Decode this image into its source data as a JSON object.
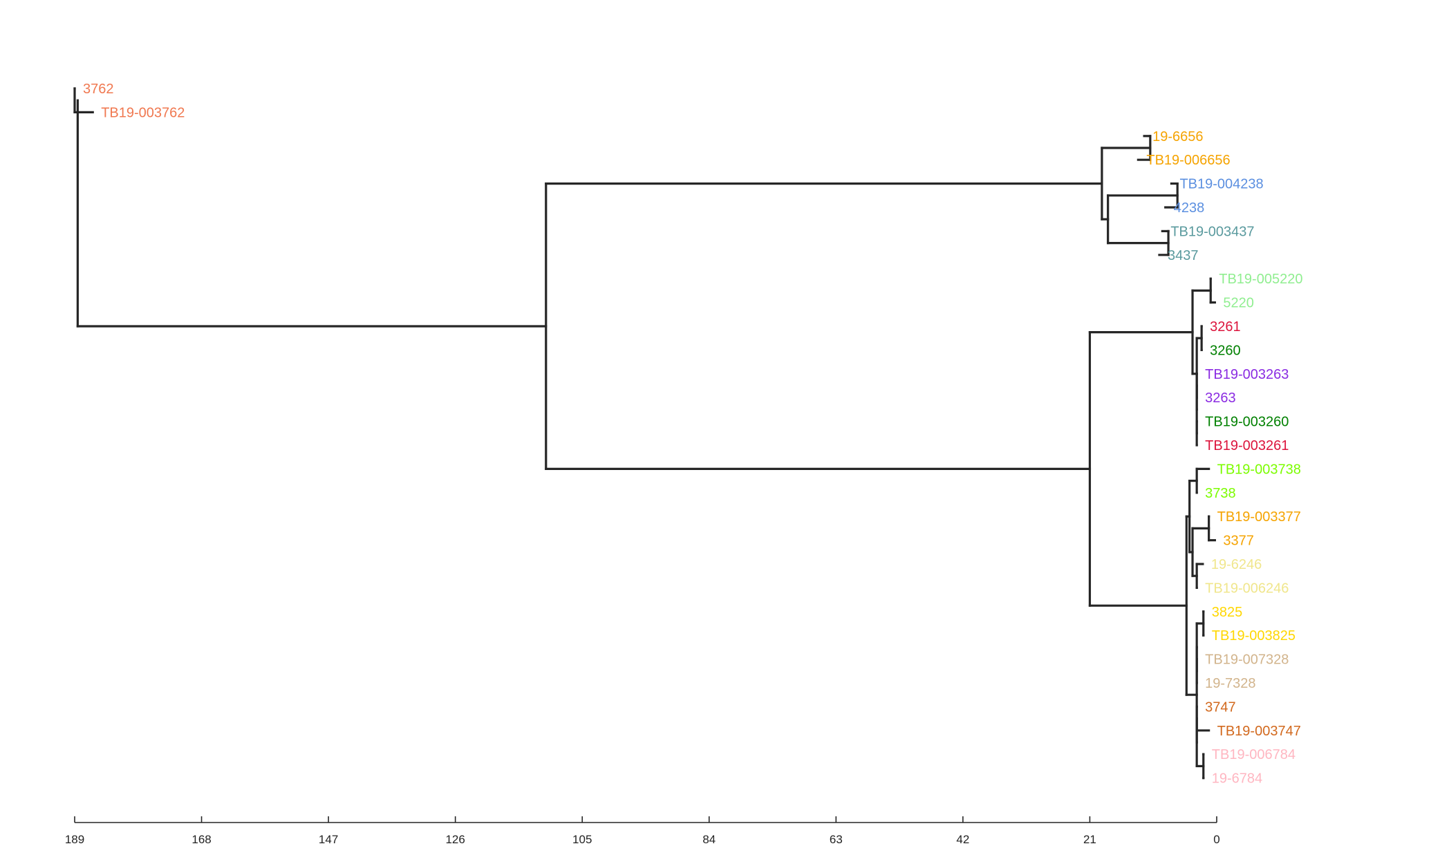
{
  "chart_data": {
    "type": "dendrogram",
    "orientation": "root-left",
    "xaxis": {
      "range": [
        189,
        0
      ],
      "ticks": [
        189,
        168,
        147,
        126,
        105,
        84,
        63,
        42,
        21,
        0
      ]
    },
    "leaves": [
      {
        "label": "3762",
        "color": "#f07850",
        "height": 189,
        "cluster": "A"
      },
      {
        "label": "TB19-003762",
        "color": "#f07850",
        "height": 186,
        "cluster": "A"
      },
      {
        "label": "19-6656",
        "color": "#f5a300",
        "height": 12,
        "cluster": "B1"
      },
      {
        "label": "TB19-006656",
        "color": "#f5a300",
        "height": 13,
        "cluster": "B1"
      },
      {
        "label": "TB19-004238",
        "color": "#5b8fe0",
        "height": 7.5,
        "cluster": "B2"
      },
      {
        "label": "4238",
        "color": "#5b8fe0",
        "height": 8.5,
        "cluster": "B2"
      },
      {
        "label": "TB19-003437",
        "color": "#5a9a9e",
        "height": 9,
        "cluster": "B3"
      },
      {
        "label": "3437",
        "color": "#5a9a9e",
        "height": 9.5,
        "cluster": "B3"
      },
      {
        "label": "TB19-005220",
        "color": "#90ee90",
        "height": 1,
        "cluster": "C1"
      },
      {
        "label": "5220",
        "color": "#90ee90",
        "height": 0.3,
        "cluster": "C1"
      },
      {
        "label": "3261",
        "color": "#dc143c",
        "height": 2.5,
        "cluster": "C1"
      },
      {
        "label": "3260",
        "color": "#008000",
        "height": 2.5,
        "cluster": "C1"
      },
      {
        "label": "TB19-003263",
        "color": "#8a2be2",
        "height": 3.3,
        "cluster": "C1"
      },
      {
        "label": "3263",
        "color": "#8a2be2",
        "height": 3.3,
        "cluster": "C1"
      },
      {
        "label": "TB19-003260",
        "color": "#008000",
        "height": 3.3,
        "cluster": "C1"
      },
      {
        "label": "TB19-003261",
        "color": "#dc143c",
        "height": 3.3,
        "cluster": "C1"
      },
      {
        "label": "TB19-003738",
        "color": "#7cfc00",
        "height": 1.3,
        "cluster": "C2"
      },
      {
        "label": "3738",
        "color": "#7cfc00",
        "height": 3.3,
        "cluster": "C2"
      },
      {
        "label": "TB19-003377",
        "color": "#f5a300",
        "height": 1.3,
        "cluster": "C2"
      },
      {
        "label": "3377",
        "color": "#f5a300",
        "height": 0.3,
        "cluster": "C2"
      },
      {
        "label": "19-6246",
        "color": "#f0e68c",
        "height": 2.3,
        "cluster": "C2"
      },
      {
        "label": "TB19-006246",
        "color": "#f0e68c",
        "height": 3.3,
        "cluster": "C2"
      },
      {
        "label": "3825",
        "color": "#ffd700",
        "height": 2.2,
        "cluster": "C3"
      },
      {
        "label": "TB19-003825",
        "color": "#ffd700",
        "height": 2.2,
        "cluster": "C3"
      },
      {
        "label": "TB19-007328",
        "color": "#d2b48c",
        "height": 3.3,
        "cluster": "C3"
      },
      {
        "label": "19-7328",
        "color": "#d2b48c",
        "height": 3.3,
        "cluster": "C3"
      },
      {
        "label": "3747",
        "color": "#d2691e",
        "height": 3.3,
        "cluster": "C3"
      },
      {
        "label": "TB19-003747",
        "color": "#d2691e",
        "height": 1.3,
        "cluster": "C3"
      },
      {
        "label": "TB19-006784",
        "color": "#ffb6c1",
        "height": 2.2,
        "cluster": "C3"
      },
      {
        "label": "19-6784",
        "color": "#ffb6c1",
        "height": 2.2,
        "cluster": "C3"
      }
    ],
    "merges": [
      {
        "id": "A",
        "height": 189,
        "children_leaves": [
          0,
          1
        ]
      },
      {
        "id": "B",
        "height": 19,
        "children_leaves": [
          2,
          3,
          4,
          5,
          6,
          7
        ]
      },
      {
        "id": "C",
        "height": 21,
        "children_leaves": [
          8,
          9,
          10,
          11,
          12,
          13,
          14,
          15,
          16,
          17,
          18,
          19,
          20,
          21,
          22,
          23,
          24,
          25,
          26,
          27,
          28,
          29
        ]
      },
      {
        "id": "BC",
        "height": 111,
        "children": [
          "B",
          "C"
        ]
      },
      {
        "id": "root",
        "height": 188.5,
        "children": [
          "A",
          "BC"
        ]
      }
    ]
  }
}
